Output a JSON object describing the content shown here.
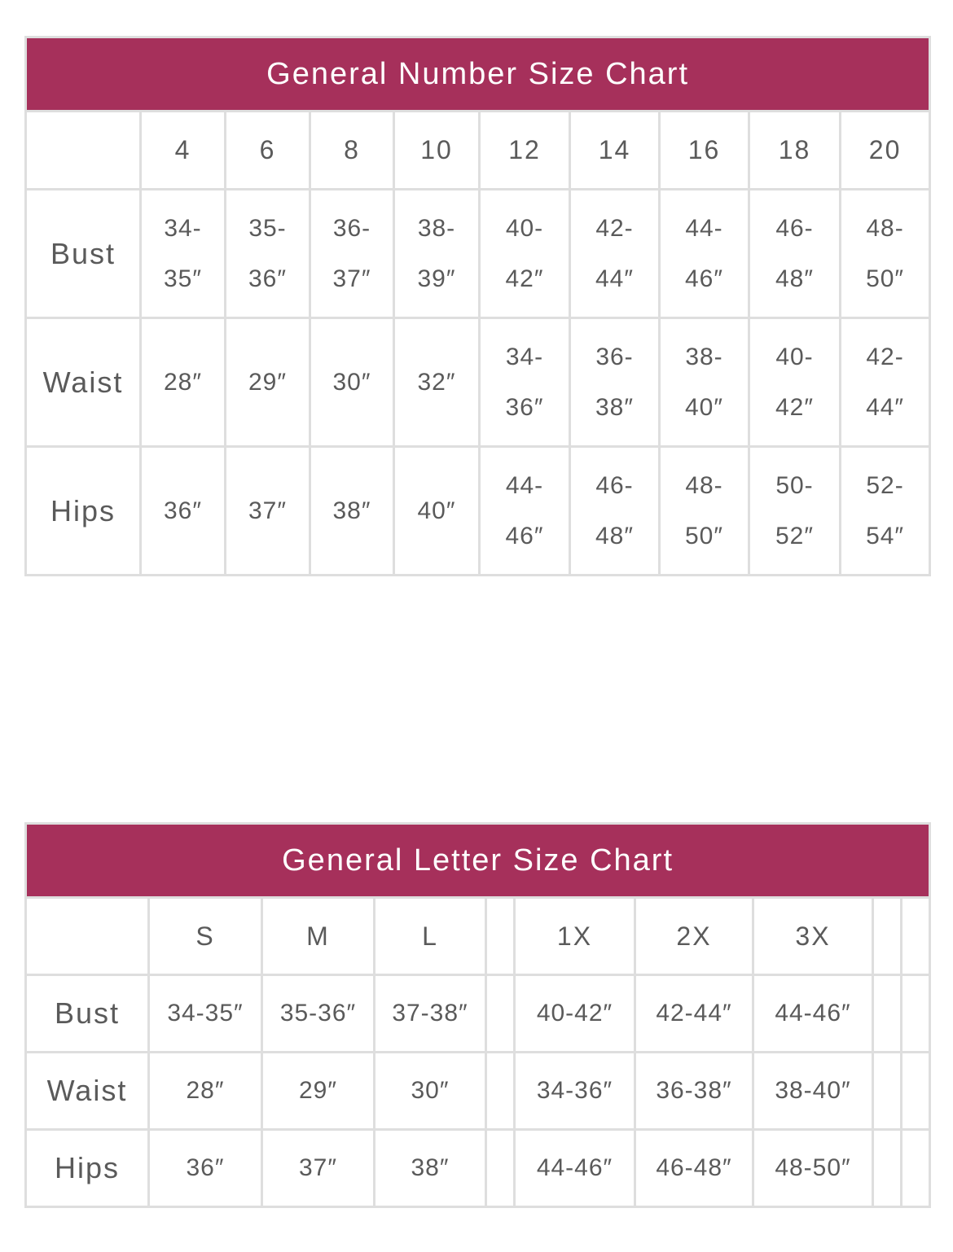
{
  "number_chart": {
    "title": "General Number Size Chart",
    "sizes": [
      "4",
      "6",
      "8",
      "10",
      "12",
      "14",
      "16",
      "18",
      "20"
    ],
    "rows": [
      {
        "label": "Bust",
        "values": [
          "34-35″",
          "35-36″",
          "36-37″",
          "38-39″",
          "40-42″",
          "42-44″",
          "44-46″",
          "46-48″",
          "48-50″"
        ]
      },
      {
        "label": "Waist",
        "values": [
          "28″",
          "29″",
          "30″",
          "32″",
          "34-36″",
          "36-38″",
          "38-40″",
          "40-42″",
          "42-44″"
        ]
      },
      {
        "label": "Hips",
        "values": [
          "36″",
          "37″",
          "38″",
          "40″",
          "44-46″",
          "46-48″",
          "48-50″",
          "50-52″",
          "52-54″"
        ]
      }
    ]
  },
  "letter_chart": {
    "title": "General Letter Size Chart",
    "sizes": [
      "S",
      "M",
      "L",
      "",
      "1X",
      "2X",
      "3X",
      "",
      ""
    ],
    "rows": [
      {
        "label": "Bust",
        "values": [
          "34-35″",
          "35-36″",
          "37-38″",
          "",
          "40-42″",
          "42-44″",
          "44-46″",
          "",
          ""
        ]
      },
      {
        "label": "Waist",
        "values": [
          "28″",
          "29″",
          "30″",
          "",
          "34-36″",
          "36-38″",
          "38-40″",
          "",
          ""
        ]
      },
      {
        "label": "Hips",
        "values": [
          "36″",
          "37″",
          "38″",
          "",
          "44-46″",
          "46-48″",
          "48-50″",
          "",
          ""
        ]
      }
    ]
  },
  "colors": {
    "header_bg": "#a6305b",
    "border": "#dedede",
    "text": "#5a5a5a"
  }
}
